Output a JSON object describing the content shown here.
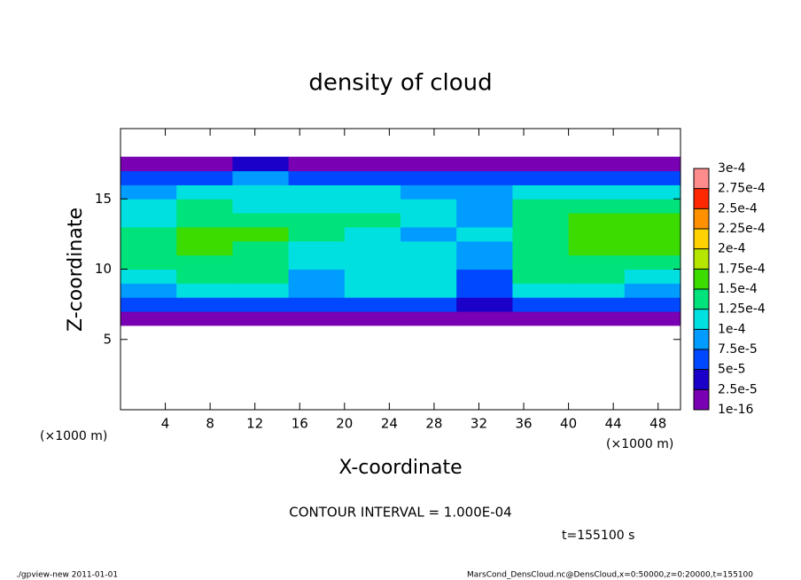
{
  "chart_data": {
    "type": "heatmap",
    "title": "density of cloud",
    "x_label": "X-coordinate",
    "y_label": "Z-coordinate",
    "x_unit": "(×1000 m)",
    "x_unit_right": "(×1000 m)",
    "xlim": [
      0,
      50
    ],
    "ylim": [
      0,
      20
    ],
    "xticks": [
      4,
      8,
      12,
      16,
      20,
      24,
      28,
      32,
      36,
      40,
      44,
      48
    ],
    "yticks": [
      5,
      10,
      15
    ],
    "xedges": [
      0,
      5,
      10,
      15,
      20,
      25,
      30,
      35,
      40,
      45,
      50
    ],
    "yedges": [
      6,
      7,
      8,
      9,
      10,
      11,
      12,
      13,
      14,
      15,
      16,
      17,
      18
    ],
    "values": [
      [
        2e-05,
        2e-05,
        2e-05,
        2e-05,
        2e-05,
        2e-05,
        2e-05,
        2e-05,
        2e-05,
        2e-05
      ],
      [
        6e-05,
        6e-05,
        7e-05,
        5e-05,
        6e-05,
        6e-05,
        4e-05,
        6e-05,
        7e-05,
        6e-05
      ],
      [
        9e-05,
        0.00011,
        0.0001,
        8e-05,
        0.00011,
        0.00011,
        6e-05,
        0.0001,
        0.00011,
        9e-05
      ],
      [
        0.00012,
        0.00013,
        0.00013,
        9e-05,
        0.00012,
        0.00012,
        7e-05,
        0.00013,
        0.00013,
        0.00012
      ],
      [
        0.00013,
        0.00014,
        0.00014,
        0.0001,
        0.00011,
        0.00012,
        8e-05,
        0.00014,
        0.00014,
        0.00013
      ],
      [
        0.00014,
        0.00015,
        0.00014,
        0.00011,
        0.0001,
        0.00011,
        9e-05,
        0.00014,
        0.00015,
        0.00015
      ],
      [
        0.00013,
        0.00015,
        0.00015,
        0.00013,
        0.00011,
        9e-05,
        0.0001,
        0.00014,
        0.00015,
        0.00016
      ],
      [
        0.00012,
        0.00014,
        0.00014,
        0.00013,
        0.00013,
        0.00012,
        8e-05,
        0.00014,
        0.00015,
        0.00015
      ],
      [
        0.0001,
        0.00014,
        0.00012,
        0.00012,
        0.00012,
        0.0001,
        9e-05,
        0.00013,
        0.00014,
        0.00013
      ],
      [
        8e-05,
        0.00012,
        0.00012,
        0.00012,
        0.0001,
        9e-05,
        8e-05,
        0.00011,
        0.00012,
        0.0001
      ],
      [
        6e-05,
        7e-05,
        8e-05,
        7e-05,
        6e-05,
        6e-05,
        6e-05,
        7e-05,
        6e-05,
        5e-05
      ],
      [
        2e-05,
        2e-05,
        3e-05,
        2e-05,
        2e-05,
        2e-05,
        2e-05,
        2e-05,
        2e-05,
        2e-05
      ]
    ],
    "levels": [
      1e-16,
      {
        "value": 2.5e-05,
        "label": "2.5e-5"
      },
      {
        "value": 5e-05,
        "label": "5e-5"
      },
      {
        "value": 7.5e-05,
        "label": "7.5e-5"
      },
      {
        "value": 0.0001,
        "label": "1e-4"
      },
      {
        "value": 0.000125,
        "label": "1.25e-4"
      },
      {
        "value": 0.00015,
        "label": "1.5e-4"
      },
      {
        "value": 0.000175,
        "label": "1.75e-4"
      },
      {
        "value": 0.0002,
        "label": "2e-4"
      },
      {
        "value": 0.000225,
        "label": "2.25e-4"
      },
      {
        "value": 0.00025,
        "label": "2.5e-4"
      },
      {
        "value": 0.000275,
        "label": "2.75e-4"
      },
      {
        "value": 0.0003,
        "label": "3e-4"
      }
    ],
    "colors": [
      "#7a00b4",
      "#1a00c8",
      "#0048ff",
      "#009cff",
      "#00e0e0",
      "#00e27a",
      "#3cdc00",
      "#b4e600",
      "#ffd200",
      "#ff9000",
      "#ff2800",
      "#ff8c8c"
    ],
    "contour_interval": "CONTOUR INTERVAL = 1.000E-04",
    "time_label": "t=155100 s",
    "footer_left": "./gpview-new  2011-01-01",
    "footer_right": "MarsCond_DensCloud.nc@DensCloud,x=0:50000,z=0:20000,t=155100"
  }
}
